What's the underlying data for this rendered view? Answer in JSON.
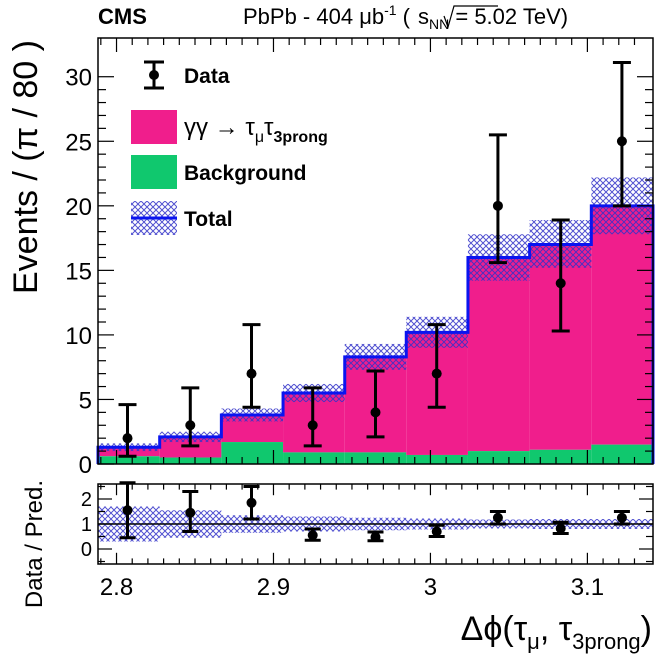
{
  "header": {
    "cms": "CMS",
    "lumi_prefix": "PbPb - 404 μb",
    "lumi_exp": "-1",
    "energy_open": " (",
    "sqrt_s": "s",
    "sqrt_sub": "NN",
    "energy_close": " = 5.02 TeV)"
  },
  "legend": {
    "data": "Data",
    "signal_main": "γγ → τ",
    "signal_sub1": "μ",
    "signal_mid": "τ",
    "signal_sub2": "3prong",
    "background": "Background",
    "total": "Total"
  },
  "colors": {
    "signal": "#f01e8c",
    "background": "#10c86e",
    "total_line": "#0a14f0",
    "uncertainty": "#3232c8",
    "data": "#000000"
  },
  "chart_data": {
    "type": "bar",
    "stacked": true,
    "bin_edges": [
      2.7882,
      2.8275,
      2.8668,
      2.9061,
      2.9454,
      2.9846,
      3.0239,
      3.0632,
      3.1025,
      3.1418
    ],
    "series": [
      {
        "name": "Background",
        "values": [
          0.6,
          0.5,
          1.7,
          0.9,
          0.9,
          0.7,
          1.0,
          1.1,
          1.5
        ]
      },
      {
        "name": "γγ → τμτ3prong",
        "values": [
          0.7,
          1.6,
          2.1,
          4.6,
          7.4,
          9.5,
          15.0,
          15.9,
          18.5
        ]
      },
      {
        "name": "Total",
        "values": [
          1.3,
          2.1,
          3.8,
          5.5,
          8.3,
          10.2,
          16.0,
          17.0,
          20.0
        ]
      }
    ],
    "uncertainty_band": {
      "low": [
        1.0,
        1.7,
        3.3,
        4.8,
        7.3,
        9.0,
        14.2,
        15.2,
        17.8
      ],
      "high": [
        1.6,
        2.5,
        4.3,
        6.2,
        9.3,
        11.4,
        17.8,
        18.9,
        22.2
      ]
    },
    "data_points": {
      "x": [
        2.807,
        2.847,
        2.886,
        2.925,
        2.965,
        3.004,
        3.043,
        3.083,
        3.122
      ],
      "y": [
        2,
        3,
        7,
        3,
        4,
        7,
        20,
        14,
        25
      ],
      "err_low": [
        1.4,
        1.6,
        2.6,
        1.6,
        1.9,
        2.6,
        4.4,
        3.7,
        5.0
      ],
      "err_high": [
        2.6,
        2.9,
        3.8,
        2.9,
        3.2,
        3.8,
        5.5,
        4.9,
        6.1
      ]
    },
    "ratio": {
      "y": [
        1.55,
        1.45,
        1.85,
        0.55,
        0.48,
        0.7,
        1.25,
        0.82,
        1.25
      ],
      "err_low": [
        1.1,
        0.75,
        0.65,
        0.2,
        0.15,
        0.2,
        0.25,
        0.2,
        0.25
      ],
      "err_high": [
        1.1,
        0.85,
        0.65,
        0.25,
        0.2,
        0.25,
        0.25,
        0.25,
        0.25
      ],
      "band_half": [
        0.7,
        0.55,
        0.35,
        0.3,
        0.25,
        0.22,
        0.18,
        0.2,
        0.2
      ]
    },
    "xlabel_main": "Δϕ(τ",
    "xlabel_sub1": "μ",
    "xlabel_mid": ", τ",
    "xlabel_sub2": "3prong",
    "xlabel_end": ")",
    "ylabel": "Events / (π / 80 )",
    "ratio_ylabel": "Data / Pred.",
    "xlim": [
      2.7882,
      3.1418
    ],
    "ylim": [
      0,
      33
    ],
    "ratio_ylim": [
      -0.6,
      2.6
    ],
    "x_ticks": [
      "2.8",
      "2.9",
      "3",
      "3.1"
    ],
    "y_ticks": [
      "0",
      "5",
      "10",
      "15",
      "20",
      "25",
      "30"
    ],
    "ratio_ticks": [
      "0",
      "1",
      "2"
    ]
  }
}
